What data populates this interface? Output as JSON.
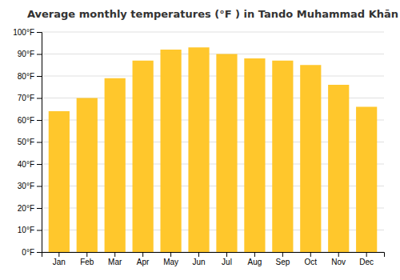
{
  "chart_data": {
    "type": "bar",
    "title": "Average monthly temperatures (°F ) in Tando Muhammad Khān",
    "categories": [
      "Jan",
      "Feb",
      "Mar",
      "Apr",
      "May",
      "Jun",
      "Jul",
      "Aug",
      "Sep",
      "Oct",
      "Nov",
      "Dec"
    ],
    "values": [
      64,
      70,
      79,
      87,
      92,
      93,
      90,
      88,
      87,
      85,
      76,
      66
    ],
    "color": "#FFC72C",
    "ylim": [
      0,
      100
    ],
    "yticks": [
      {
        "value": 0,
        "label": "0°F"
      },
      {
        "value": 10,
        "label": "10°F"
      },
      {
        "value": 20,
        "label": "20°F"
      },
      {
        "value": 30,
        "label": "30°F"
      },
      {
        "value": 40,
        "label": "40°F"
      },
      {
        "value": 50,
        "label": "50°F"
      },
      {
        "value": 60,
        "label": "60°F"
      },
      {
        "value": 70,
        "label": "70°F"
      },
      {
        "value": 80,
        "label": "80°F"
      },
      {
        "value": 90,
        "label": "90°F"
      },
      {
        "value": 100,
        "label": "100°F"
      }
    ],
    "grid": true
  }
}
